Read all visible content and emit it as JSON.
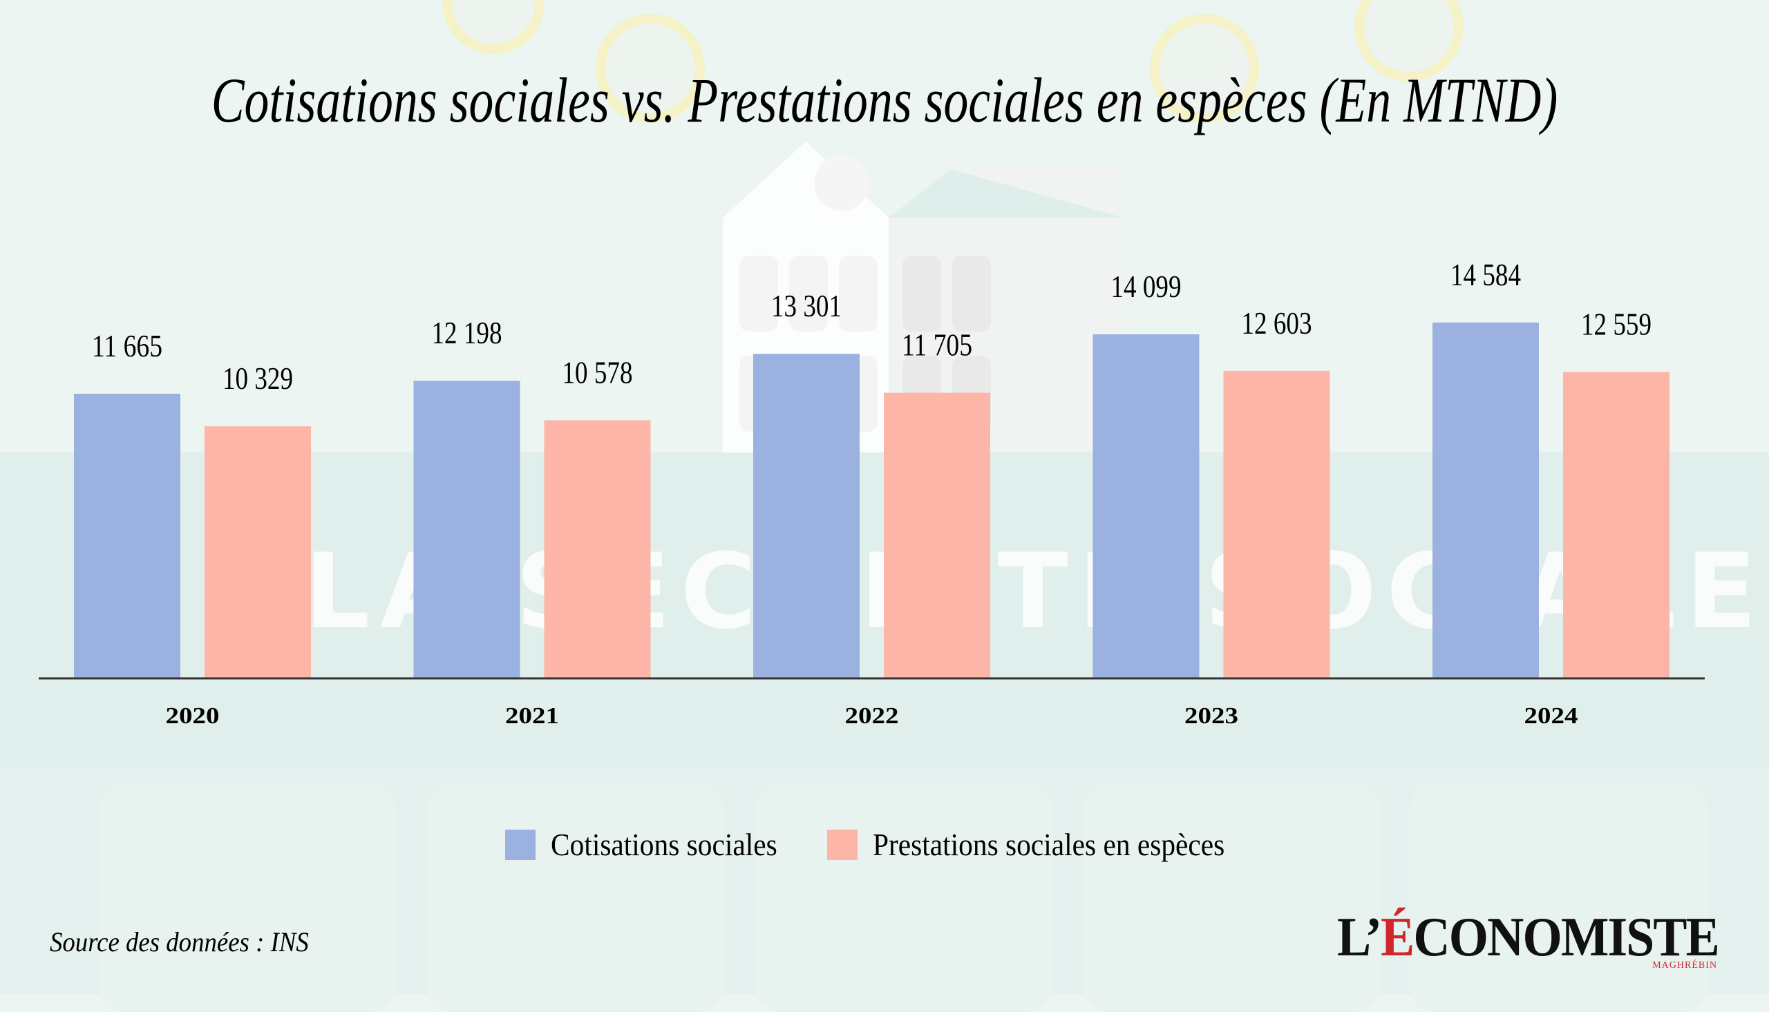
{
  "title": "Cotisations sociales vs. Prestations sociales en espèces (En MTND)",
  "background_text": "LA SÉCURITÉ SOCIALE",
  "source": "Source des données : INS",
  "logo": {
    "main_prefix": "L’",
    "main_e": "É",
    "main_rest": "CONOMISTE",
    "sub": "MAGHRÉBIN"
  },
  "colors": {
    "cotisations": "#9bb1df",
    "prestations": "#fdb5a8",
    "axis": "#333333",
    "accent": "#d0262b"
  },
  "legend": [
    {
      "label": "Cotisations sociales",
      "color": "#9bb1df"
    },
    {
      "label": "Prestations sociales en espèces",
      "color": "#fdb5a8"
    }
  ],
  "chart_data": {
    "type": "bar",
    "title": "Cotisations sociales vs. Prestations sociales en espèces (En MTND)",
    "xlabel": "",
    "ylabel": "",
    "categories": [
      "2020",
      "2021",
      "2022",
      "2023",
      "2024"
    ],
    "series": [
      {
        "name": "Cotisations sociales",
        "values": [
          11665,
          12198,
          13301,
          14099,
          14584
        ],
        "labels": [
          "11 665",
          "12 198",
          "13 301",
          "14 099",
          "14 584"
        ]
      },
      {
        "name": "Prestations sociales en espèces",
        "values": [
          10329,
          10578,
          11705,
          12603,
          12559
        ],
        "labels": [
          "10 329",
          "10 578",
          "11 705",
          "12 603",
          "12 559"
        ]
      }
    ],
    "ylim": [
      0,
      16000
    ],
    "grid": false,
    "y_axis_visible": false,
    "legend_position": "bottom-center"
  }
}
